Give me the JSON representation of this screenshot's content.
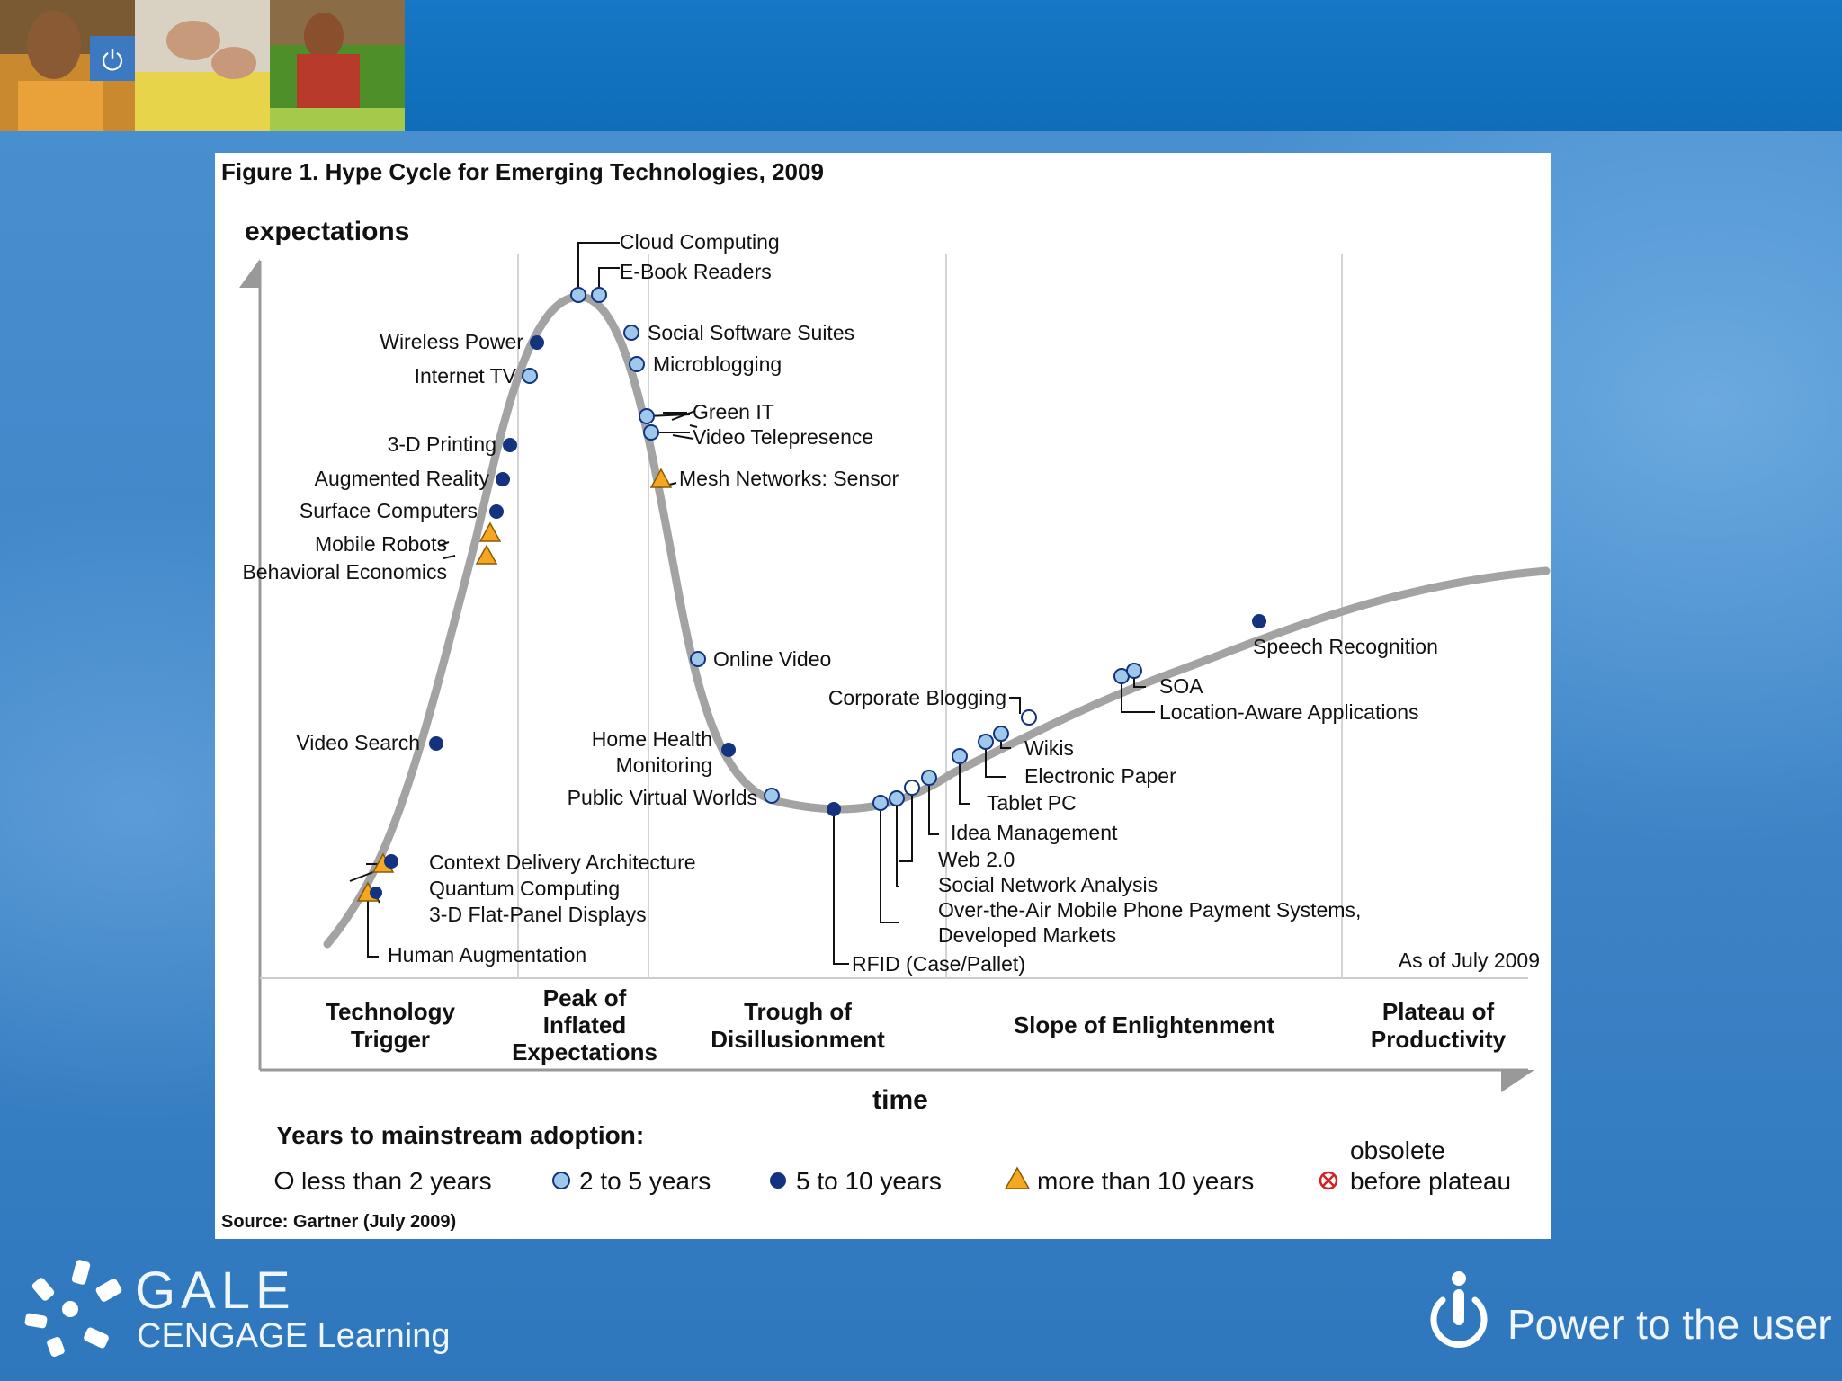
{
  "figure": {
    "title": "Figure 1. Hype Cycle for Emerging Technologies, 2009",
    "y_axis_label": "expectations",
    "x_axis_label": "time",
    "as_of": "As of July 2009",
    "source": "Source: Gartner (July 2009)",
    "phases": [
      {
        "lines": [
          "Technology",
          "Trigger"
        ]
      },
      {
        "lines": [
          "Peak of",
          "Inflated",
          "Expectations"
        ]
      },
      {
        "lines": [
          "Trough of",
          "Disillusionment"
        ]
      },
      {
        "lines": [
          "Slope of Enlightenment"
        ]
      },
      {
        "lines": [
          "Plateau of",
          "Productivity"
        ]
      }
    ],
    "technologies": [
      {
        "name": "Human Augmentation",
        "years": "more than 10 years"
      },
      {
        "name": "3-D Flat-Panel Displays",
        "years": "5 to 10 years"
      },
      {
        "name": "Quantum Computing",
        "years": "more than 10 years"
      },
      {
        "name": "Context Delivery Architecture",
        "years": "5 to 10 years"
      },
      {
        "name": "Video Search",
        "years": "5 to 10 years"
      },
      {
        "name": "Behavioral Economics",
        "years": "more than 10 years"
      },
      {
        "name": "Mobile Robots",
        "years": "more than 10 years"
      },
      {
        "name": "Surface Computers",
        "years": "5 to 10 years"
      },
      {
        "name": "Augmented Reality",
        "years": "5 to 10 years"
      },
      {
        "name": "3-D Printing",
        "years": "5 to 10 years"
      },
      {
        "name": "Internet TV",
        "years": "2 to 5 years"
      },
      {
        "name": "Wireless Power",
        "years": "5 to 10 years"
      },
      {
        "name": "Cloud Computing",
        "years": "2 to 5 years"
      },
      {
        "name": "E-Book Readers",
        "years": "2 to 5 years"
      },
      {
        "name": "Social Software Suites",
        "years": "2 to 5 years"
      },
      {
        "name": "Microblogging",
        "years": "2 to 5 years"
      },
      {
        "name": "Green IT",
        "years": "2 to 5 years"
      },
      {
        "name": "Video Telepresence",
        "years": "2 to 5 years"
      },
      {
        "name": "Mesh Networks: Sensor",
        "years": "more than 10 years"
      },
      {
        "name": "Online Video",
        "years": "2 to 5 years"
      },
      {
        "name_lines": [
          "Home Health",
          "Monitoring"
        ],
        "years": "5 to 10 years"
      },
      {
        "name": "Public Virtual Worlds",
        "years": "2 to 5 years"
      },
      {
        "name": "RFID (Case/Pallet)",
        "years": "5 to 10 years"
      },
      {
        "name_lines": [
          "Over-the-Air Mobile Phone Payment Systems,",
          "Developed Markets"
        ],
        "years": "2 to 5 years"
      },
      {
        "name": "Social Network Analysis",
        "years": "2 to 5 years"
      },
      {
        "name": "Web 2.0",
        "years": "less than 2 years"
      },
      {
        "name": "Idea Management",
        "years": "2 to 5 years"
      },
      {
        "name": "Tablet PC",
        "years": "2 to 5 years"
      },
      {
        "name": "Electronic Paper",
        "years": "2 to 5 years"
      },
      {
        "name": "Wikis",
        "years": "2 to 5 years"
      },
      {
        "name": "Corporate Blogging",
        "years": "less than 2 years"
      },
      {
        "name": "Location-Aware Applications",
        "years": "2 to 5 years"
      },
      {
        "name": "SOA",
        "years": "2 to 5 years"
      },
      {
        "name": "Speech Recognition",
        "years": "5 to 10 years"
      }
    ],
    "legend": {
      "title": "Years to mainstream adoption:",
      "items": [
        {
          "symbol": "open-circle-icon",
          "label": "less than 2 years"
        },
        {
          "symbol": "light-blue-circle-icon",
          "label": "2 to 5 years"
        },
        {
          "symbol": "dark-blue-circle-icon",
          "label": "5 to 10 years"
        },
        {
          "symbol": "orange-triangle-icon",
          "label": "more than 10 years"
        },
        {
          "symbol": "crossed-circle-icon",
          "label_lines": [
            "obsolete",
            "before plateau"
          ]
        }
      ]
    }
  },
  "footer": {
    "brand_name": "GALE",
    "brand_sub": "CENGAGE Learning",
    "tagline": "Power to the user"
  },
  "colors": {
    "background": "#3f86c8",
    "top_bar": "#1677c6",
    "marker_dark": "#14337f",
    "marker_light": "#9ec9ea",
    "marker_triangle": "#f5a623",
    "curve": "#a3a3a3"
  }
}
